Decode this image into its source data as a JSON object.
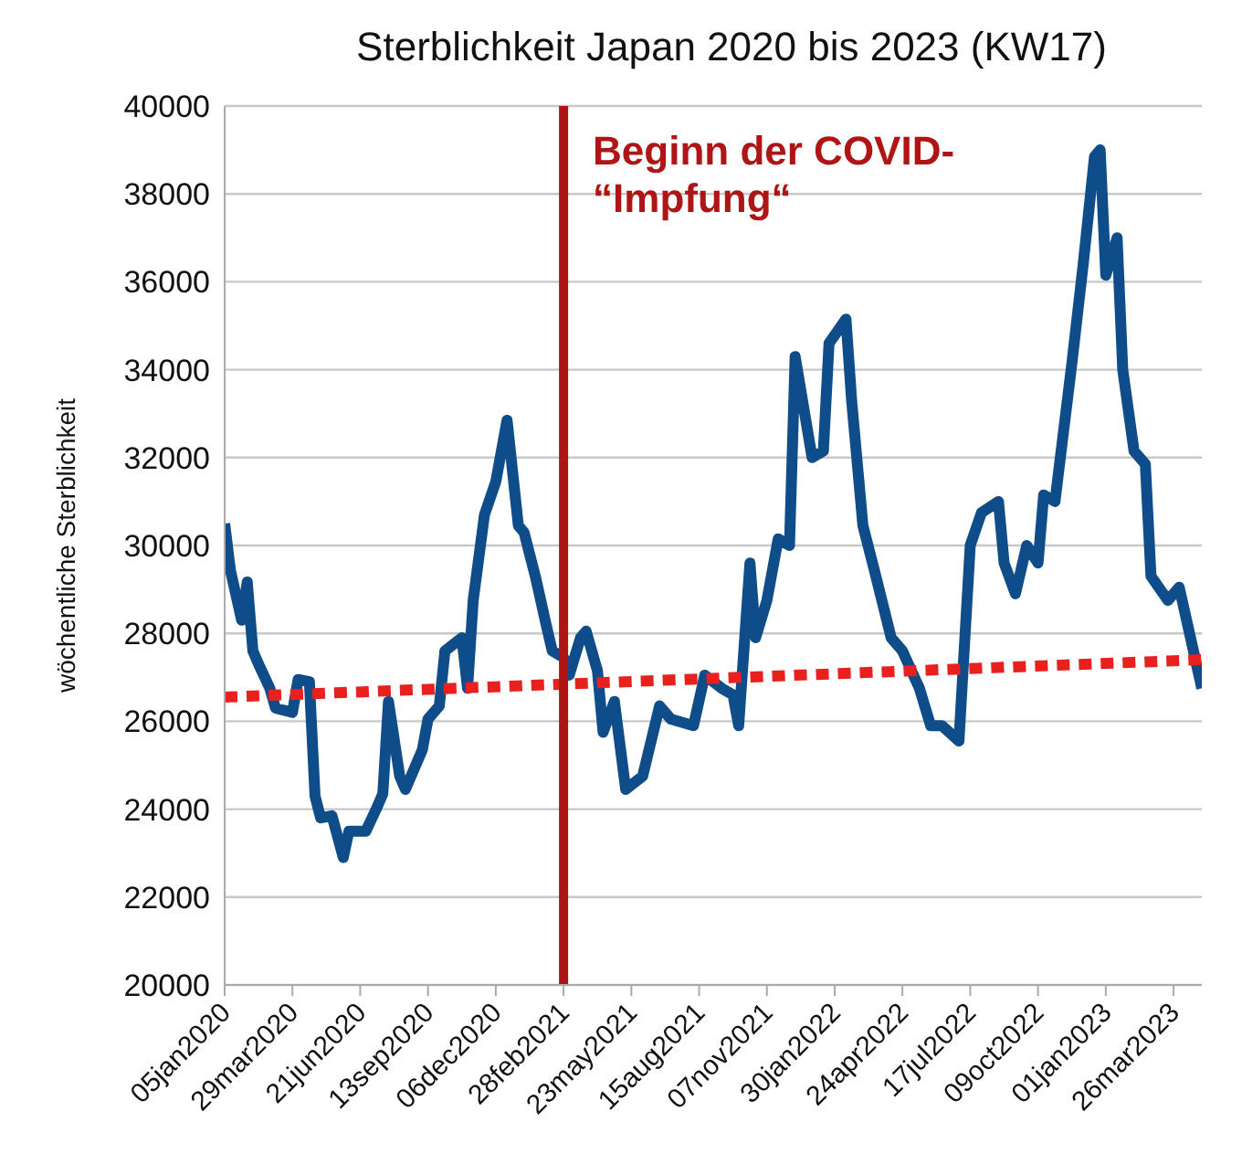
{
  "chart_data": {
    "type": "line",
    "title": "Sterblichkeit Japan 2020 bis 2023 (KW17)",
    "ylabel": "wöchentliche Sterblichkeit",
    "xlim": [
      "2020-01-05",
      "2023-04-30"
    ],
    "xticks": [
      {
        "value": "2020-01-05",
        "label": "05jan2020"
      },
      {
        "value": "2020-03-29",
        "label": "29mar2020"
      },
      {
        "value": "2020-06-21",
        "label": "21jun2020"
      },
      {
        "value": "2020-09-13",
        "label": "13sep2020"
      },
      {
        "value": "2020-12-06",
        "label": "06dec2020"
      },
      {
        "value": "2021-02-28",
        "label": "28feb2021"
      },
      {
        "value": "2021-05-23",
        "label": "23may2021"
      },
      {
        "value": "2021-08-15",
        "label": "15aug2021"
      },
      {
        "value": "2021-11-07",
        "label": "07nov2021"
      },
      {
        "value": "2022-01-30",
        "label": "30jan2022"
      },
      {
        "value": "2022-04-24",
        "label": "24apr2022"
      },
      {
        "value": "2022-07-17",
        "label": "17jul2022"
      },
      {
        "value": "2022-10-09",
        "label": "09oct2022"
      },
      {
        "value": "2023-01-01",
        "label": "01jan2023"
      },
      {
        "value": "2023-03-26",
        "label": "26mar2023"
      }
    ],
    "ylim": [
      20000,
      40000
    ],
    "yticks": [
      20000,
      22000,
      24000,
      26000,
      28000,
      30000,
      32000,
      34000,
      36000,
      38000,
      40000
    ],
    "grid": "y",
    "ref_lines": [
      {
        "axis": "x",
        "value": "2021-02-28",
        "label": "Beginn der COVID-\n“Impfung“",
        "color": "#b01515"
      }
    ],
    "series": [
      {
        "color": "#0f4c8a",
        "line_style": "solid",
        "x": [
          "2020-01-05",
          "2020-01-12",
          "2020-01-26",
          "2020-02-02",
          "2020-02-09",
          "2020-02-16",
          "2020-03-01",
          "2020-03-08",
          "2020-03-29",
          "2020-04-05",
          "2020-04-19",
          "2020-04-26",
          "2020-05-03",
          "2020-05-17",
          "2020-05-31",
          "2020-06-07",
          "2020-06-28",
          "2020-07-12",
          "2020-07-19",
          "2020-07-26",
          "2020-08-09",
          "2020-08-16",
          "2020-09-06",
          "2020-09-13",
          "2020-09-27",
          "2020-10-04",
          "2020-10-25",
          "2020-11-01",
          "2020-11-08",
          "2020-11-22",
          "2020-12-06",
          "2020-12-20",
          "2021-01-03",
          "2021-01-10",
          "2021-01-24",
          "2021-02-07",
          "2021-02-14",
          "2021-02-28",
          "2021-03-07",
          "2021-03-21",
          "2021-03-28",
          "2021-04-11",
          "2021-04-18",
          "2021-05-02",
          "2021-05-16",
          "2021-06-06",
          "2021-06-27",
          "2021-07-11",
          "2021-08-08",
          "2021-08-22",
          "2021-09-12",
          "2021-09-26",
          "2021-10-03",
          "2021-10-17",
          "2021-10-24",
          "2021-11-07",
          "2021-11-21",
          "2021-12-05",
          "2021-12-12",
          "2022-01-02",
          "2022-01-16",
          "2022-01-23",
          "2022-02-13",
          "2022-02-20",
          "2022-03-06",
          "2022-03-20",
          "2022-04-10",
          "2022-04-24",
          "2022-05-15",
          "2022-05-29",
          "2022-06-12",
          "2022-07-03",
          "2022-07-17",
          "2022-07-31",
          "2022-08-21",
          "2022-08-28",
          "2022-09-11",
          "2022-09-25",
          "2022-10-09",
          "2022-10-16",
          "2022-10-30",
          "2022-11-20",
          "2022-12-04",
          "2022-12-18",
          "2022-12-25",
          "2023-01-01",
          "2023-01-15",
          "2023-01-22",
          "2023-02-05",
          "2023-02-19",
          "2023-02-26",
          "2023-03-19",
          "2023-04-02",
          "2023-04-30"
        ],
        "values": [
          30500,
          29450,
          28300,
          29170,
          27600,
          27300,
          26750,
          26300,
          26200,
          26950,
          26900,
          24300,
          23800,
          23850,
          22900,
          23500,
          23500,
          24050,
          24350,
          26450,
          24750,
          24450,
          25350,
          26050,
          26350,
          27600,
          27900,
          26750,
          28750,
          30700,
          31450,
          32850,
          30450,
          30300,
          29300,
          28150,
          27600,
          27450,
          27050,
          27900,
          28050,
          27150,
          25750,
          26450,
          24450,
          24750,
          26350,
          26050,
          25900,
          27050,
          26750,
          26600,
          25900,
          29600,
          27900,
          28750,
          30150,
          30000,
          34300,
          32000,
          32150,
          34600,
          35150,
          33300,
          30450,
          29450,
          27900,
          27600,
          26750,
          25900,
          25900,
          25550,
          30000,
          30750,
          31000,
          29600,
          28900,
          30000,
          29600,
          31150,
          31000,
          34150,
          36400,
          38850,
          39000,
          36150,
          37000,
          34000,
          32150,
          31850,
          29300,
          28750,
          29050,
          26750
        ]
      },
      {
        "color": "#e8201e",
        "line_style": "dotted",
        "x": [
          "2020-01-05",
          "2023-04-30"
        ],
        "values": [
          26550,
          27400
        ]
      }
    ]
  }
}
